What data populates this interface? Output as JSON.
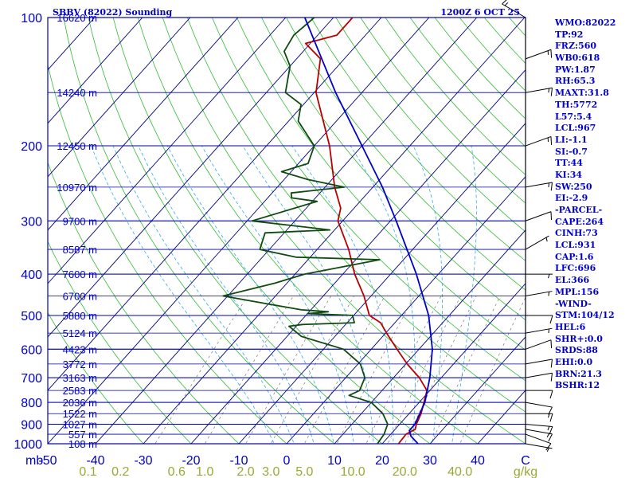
{
  "chart_data": {
    "type": "line",
    "subtype": "skew-T log-P sounding",
    "title": "SBBV (82022) Sounding",
    "datetime": "1200Z  6 OCT 25",
    "pressure_axis_label": "mb",
    "pressure_range": [
      1000,
      100
    ],
    "pressure_ticks": [
      1000,
      900,
      800,
      700,
      600,
      500,
      400,
      300,
      200,
      100
    ],
    "temperature_axis_label": "C",
    "temperature_ticks": [
      "-50",
      "-40",
      "-30",
      "-20",
      "-10",
      "0",
      "10",
      "20",
      "30",
      "40"
    ],
    "mixing_ratio_axis_label": "g/kg",
    "mixing_ratio_ticks": [
      "0.1",
      "0.2",
      "0.6",
      "1.0",
      "2.0",
      "3.0",
      "5.0",
      "10.0",
      "20.0",
      "40.0"
    ],
    "height_labels": [
      {
        "pressure": 1000,
        "label": "108 m"
      },
      {
        "pressure": 950,
        "label": "557 m"
      },
      {
        "pressure": 900,
        "label": "1027 m"
      },
      {
        "pressure": 850,
        "label": "1522 m"
      },
      {
        "pressure": 800,
        "label": "2036 m"
      },
      {
        "pressure": 750,
        "label": "2583 m"
      },
      {
        "pressure": 700,
        "label": "3163 m"
      },
      {
        "pressure": 650,
        "label": "3772 m"
      },
      {
        "pressure": 600,
        "label": "4423 m"
      },
      {
        "pressure": 550,
        "label": "5124 m"
      },
      {
        "pressure": 500,
        "label": "5880 m"
      },
      {
        "pressure": 450,
        "label": "6700 m"
      },
      {
        "pressure": 400,
        "label": "7600 m"
      },
      {
        "pressure": 350,
        "label": "8587 m"
      },
      {
        "pressure": 300,
        "label": "9700 m"
      },
      {
        "pressure": 250,
        "label": "10970 m"
      },
      {
        "pressure": 200,
        "label": "12450 m"
      },
      {
        "pressure": 150,
        "label": "14240 m"
      },
      {
        "pressure": 100,
        "label": "16620 m"
      }
    ],
    "series": [
      {
        "color": "#b80000",
        "points": [
          [
            1000,
            23.4
          ],
          [
            950,
            23.2
          ],
          [
            925,
            24.2
          ],
          [
            900,
            23.5
          ],
          [
            850,
            22.5
          ],
          [
            800,
            21.0
          ],
          [
            750,
            19.4
          ],
          [
            700,
            15.4
          ],
          [
            650,
            10.3
          ],
          [
            600,
            5.4
          ],
          [
            550,
            0.2
          ],
          [
            520,
            -3.0
          ],
          [
            500,
            -6.7
          ],
          [
            450,
            -11.5
          ],
          [
            400,
            -17.5
          ],
          [
            350,
            -23.4
          ],
          [
            300,
            -31.0
          ],
          [
            280,
            -32.8
          ],
          [
            250,
            -38.0
          ],
          [
            200,
            -46.8
          ],
          [
            150,
            -59.6
          ],
          [
            125,
            -65.0
          ],
          [
            115,
            -71.0
          ],
          [
            110,
            -66.0
          ],
          [
            100,
            -66.0
          ]
        ]
      },
      {
        "color": "#0f4a0f",
        "points": [
          [
            1000,
            19.0
          ],
          [
            950,
            18.6
          ],
          [
            900,
            17.5
          ],
          [
            850,
            14.5
          ],
          [
            800,
            10.0
          ],
          [
            770,
            4.0
          ],
          [
            750,
            5.3
          ],
          [
            700,
            4.0
          ],
          [
            650,
            0.5
          ],
          [
            600,
            -5.8
          ],
          [
            560,
            -17.0
          ],
          [
            530,
            -21.5
          ],
          [
            525,
            -19.0
          ],
          [
            520,
            -8.5
          ],
          [
            500,
            -10.2
          ],
          [
            495,
            -20.0
          ],
          [
            490,
            -16.0
          ],
          [
            485,
            -22.0
          ],
          [
            470,
            -30.0
          ],
          [
            450,
            -41.0
          ],
          [
            420,
            -32.5
          ],
          [
            400,
            -28.0
          ],
          [
            370,
            -15.0
          ],
          [
            365,
            -33.0
          ],
          [
            350,
            -42.0
          ],
          [
            320,
            -44.0
          ],
          [
            315,
            -31.0
          ],
          [
            300,
            -49.0
          ],
          [
            270,
            -39.0
          ],
          [
            265,
            -45.0
          ],
          [
            258,
            -46.0
          ],
          [
            250,
            -36.0
          ],
          [
            240,
            -45.0
          ],
          [
            230,
            -52.0
          ],
          [
            220,
            -48.0
          ],
          [
            200,
            -50.0
          ],
          [
            175,
            -58.0
          ],
          [
            160,
            -60.5
          ],
          [
            150,
            -66.0
          ],
          [
            130,
            -70.0
          ],
          [
            120,
            -74.0
          ],
          [
            110,
            -75.0
          ],
          [
            100,
            -74.0
          ]
        ]
      },
      {
        "color": "#0000c8",
        "points": [
          [
            1000,
            27.5
          ],
          [
            960,
            24.6
          ],
          [
            931,
            23.2
          ],
          [
            900,
            23.2
          ],
          [
            800,
            21.2
          ],
          [
            700,
            17.6
          ],
          [
            600,
            12.8
          ],
          [
            500,
            5.7
          ],
          [
            400,
            -4.6
          ],
          [
            300,
            -18.8
          ],
          [
            250,
            -28.0
          ],
          [
            200,
            -40.0
          ],
          [
            150,
            -55.5
          ],
          [
            100,
            -76.0
          ]
        ]
      }
    ],
    "wind_barbs_kt": [
      {
        "pressure": 1000,
        "dir": 100,
        "speed": 5
      },
      {
        "pressure": 950,
        "dir": 110,
        "speed": 10
      },
      {
        "pressure": 925,
        "dir": 100,
        "speed": 15
      },
      {
        "pressure": 900,
        "dir": 95,
        "speed": 15
      },
      {
        "pressure": 850,
        "dir": 90,
        "speed": 15
      },
      {
        "pressure": 800,
        "dir": 100,
        "speed": 10
      },
      {
        "pressure": 750,
        "dir": 90,
        "speed": 10
      },
      {
        "pressure": 700,
        "dir": 80,
        "speed": 10
      },
      {
        "pressure": 650,
        "dir": 80,
        "speed": 10
      },
      {
        "pressure": 600,
        "dir": 70,
        "speed": 10
      },
      {
        "pressure": 550,
        "dir": 80,
        "speed": 5
      },
      {
        "pressure": 500,
        "dir": 90,
        "speed": 10
      },
      {
        "pressure": 450,
        "dir": 80,
        "speed": 5
      },
      {
        "pressure": 400,
        "dir": 90,
        "speed": 5
      },
      {
        "pressure": 350,
        "dir": 60,
        "speed": 5
      },
      {
        "pressure": 300,
        "dir": 70,
        "speed": 10
      },
      {
        "pressure": 250,
        "dir": 80,
        "speed": 15
      },
      {
        "pressure": 200,
        "dir": 70,
        "speed": 15
      },
      {
        "pressure": 150,
        "dir": 80,
        "speed": 15
      },
      {
        "pressure": 125,
        "dir": 70,
        "speed": 15
      },
      {
        "pressure": 100,
        "dir": 300,
        "speed": 15
      }
    ],
    "colors": {
      "isobar": "#0000aa",
      "isotherm": "#000080",
      "dry_adiabat": "#33bb33",
      "moist_adiabat": "#33aaee",
      "mixing_ratio": "#777777",
      "frame": "#0000aa",
      "temperature": "#b80000",
      "dewpoint": "#0f4a0f",
      "parcel": "#0000c8",
      "axis_label": "#0000cc",
      "mixing_label": "#99aa33"
    },
    "indices": [
      "WMO:82022",
      "TP:92",
      "FRZ:560",
      "WB0:618",
      "PW:1.87",
      "RH:65.3",
      "MAXT:31.8",
      "TH:5772",
      "L57:5.4",
      "LCL:967",
      "LI:-1.1",
      "SI:-0.7",
      "TT:44",
      "KI:34",
      "SW:250",
      "EI:-2.9",
      "-PARCEL-",
      "CAPE:264",
      "CINH:73",
      "LCL:931",
      "CAP:1.6",
      "LFC:696",
      "EL:366",
      "MPL:156",
      "-WIND-",
      "STM:104/12",
      "HEL:6",
      "SHR+:0.0",
      "SRDS:88",
      "EHI:0.0",
      "BRN:21.3",
      "BSHR:12"
    ]
  }
}
